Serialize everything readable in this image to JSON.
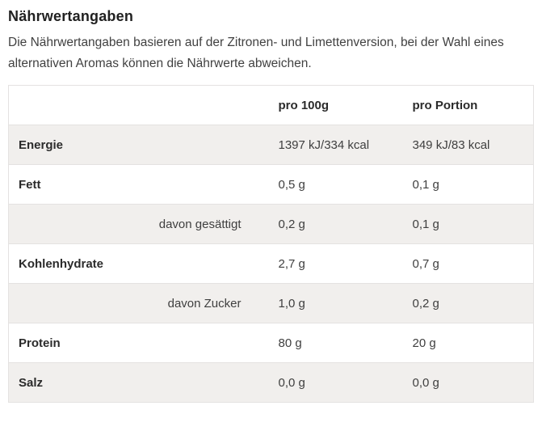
{
  "section": {
    "title": "Nährwertangaben",
    "description": "Die Nährwertangaben basieren auf der Zitronen- und Limettenversion, bei der Wahl eines alternativen Aromas können die Nährwerte abweichen."
  },
  "table": {
    "columns": [
      "",
      "pro 100g",
      "pro Portion"
    ],
    "rows": [
      {
        "label": "Energie",
        "indent": false,
        "per_100g": "1397 kJ/334 kcal",
        "per_portion": "349 kJ/83 kcal"
      },
      {
        "label": "Fett",
        "indent": false,
        "per_100g": "0,5 g",
        "per_portion": "0,1 g"
      },
      {
        "label": "davon gesättigt",
        "indent": true,
        "per_100g": "0,2 g",
        "per_portion": "0,1 g"
      },
      {
        "label": "Kohlenhydrate",
        "indent": false,
        "per_100g": "2,7 g",
        "per_portion": "0,7 g"
      },
      {
        "label": "davon Zucker",
        "indent": true,
        "per_100g": "1,0 g",
        "per_portion": "0,2 g"
      },
      {
        "label": "Protein",
        "indent": false,
        "per_100g": "80 g",
        "per_portion": "20 g"
      },
      {
        "label": "Salz",
        "indent": false,
        "per_100g": "0,0 g",
        "per_portion": "0,0 g"
      }
    ]
  },
  "colors": {
    "stripe_row": "#f1efed",
    "border": "#e4e2e1",
    "heading_text": "#212121",
    "body_text": "#3f3f3f"
  }
}
